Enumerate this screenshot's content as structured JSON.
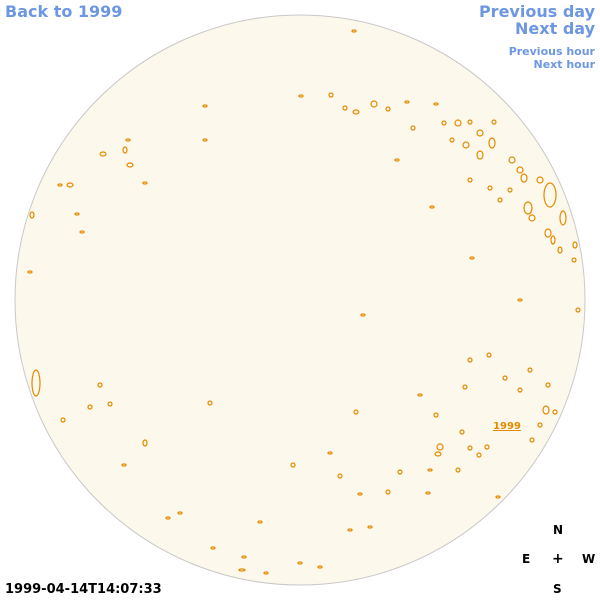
{
  "nav": {
    "back": "Back to 1999",
    "previous_day": "Previous day",
    "next_day": "Next day",
    "previous_hour": "Previous hour",
    "next_hour": "Next hour"
  },
  "map": {
    "region_label": "1999"
  },
  "timestamp": "1999-04-14T14:07:33",
  "compass": {
    "north": "N",
    "east": "E",
    "center": "+",
    "west": "W",
    "south": "S"
  }
}
